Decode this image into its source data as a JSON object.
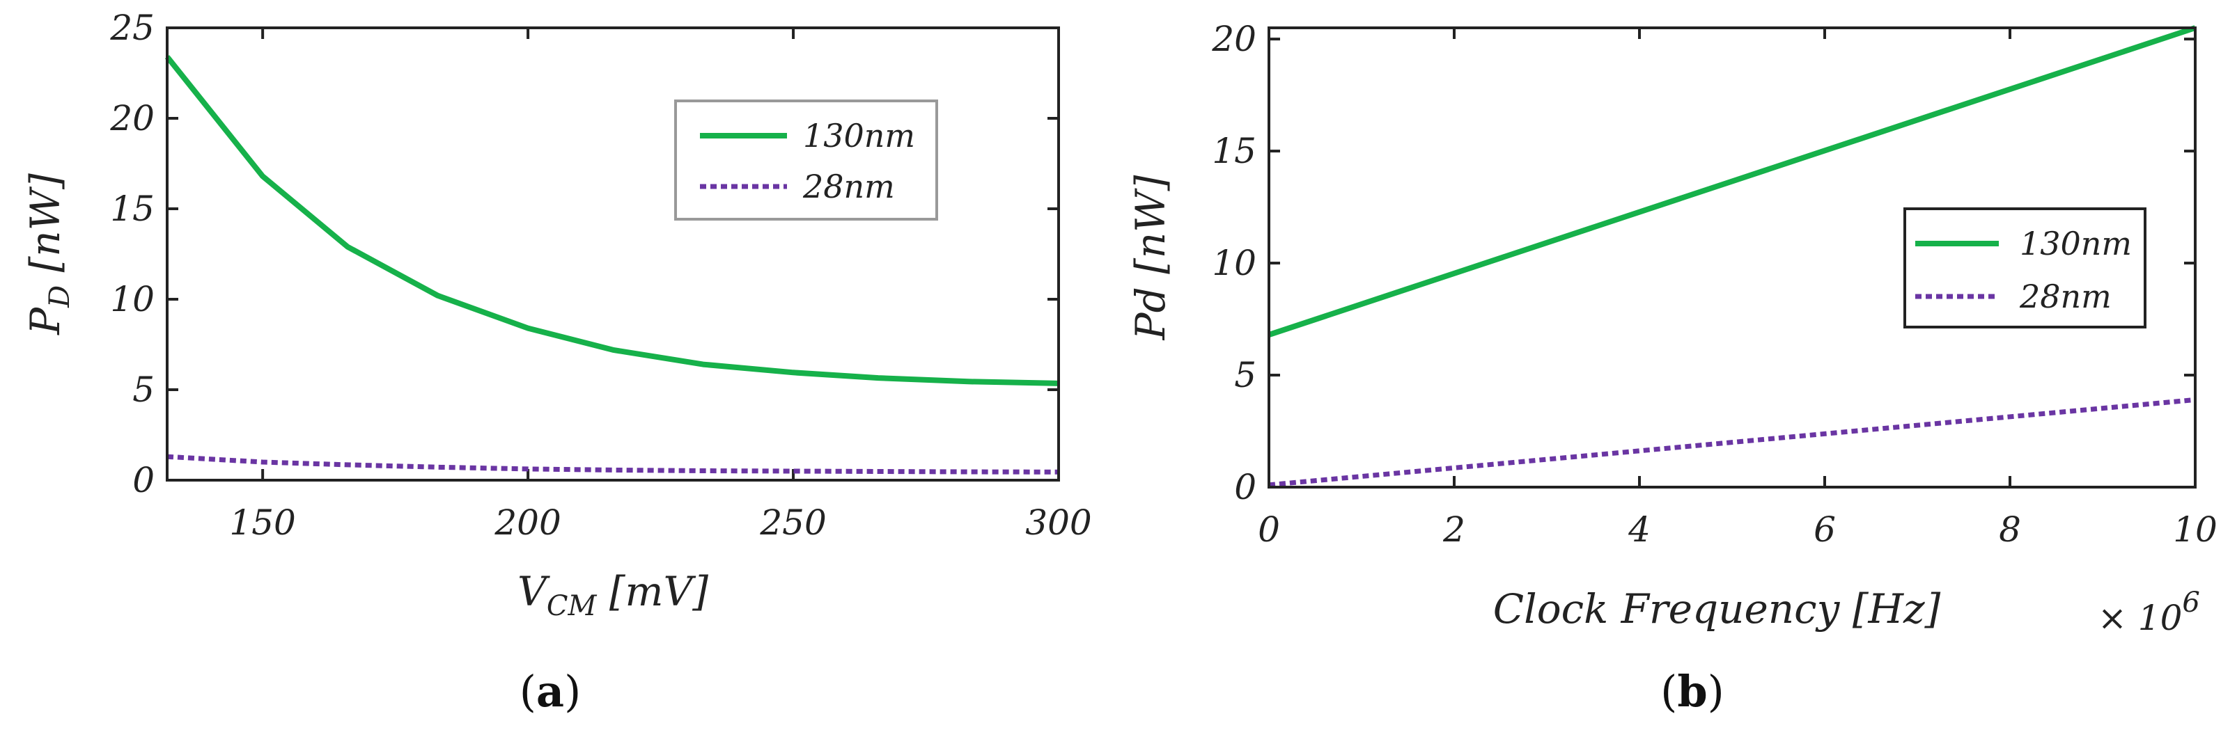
{
  "chart_data": [
    {
      "type": "line",
      "panel": "a",
      "caption": "(a)",
      "xlim": [
        132,
        300
      ],
      "ylim": [
        0,
        25
      ],
      "xticks": [
        150,
        200,
        250,
        300
      ],
      "yticks": [
        0,
        5,
        10,
        15,
        20,
        25
      ],
      "xlabel": {
        "main": "V",
        "sub": "CM",
        "unit": " [mV]"
      },
      "ylabel": {
        "main": "P",
        "sub": "D",
        "unit": " [nW]"
      },
      "legend_position": "top-right",
      "series": [
        {
          "name": "130nm",
          "color": "#16b14a",
          "style": "solid",
          "x": [
            132,
            150,
            166,
            183,
            200,
            216,
            233,
            250,
            266,
            283,
            300
          ],
          "y": [
            23.4,
            16.8,
            12.9,
            10.2,
            8.4,
            7.2,
            6.4,
            5.95,
            5.65,
            5.45,
            5.35
          ]
        },
        {
          "name": "28nm",
          "color": "#6a35a3",
          "style": "dotted",
          "x": [
            132,
            150,
            166,
            183,
            200,
            216,
            233,
            250,
            266,
            283,
            300
          ],
          "y": [
            1.3,
            1.0,
            0.85,
            0.72,
            0.62,
            0.56,
            0.52,
            0.5,
            0.48,
            0.46,
            0.45
          ]
        }
      ]
    },
    {
      "type": "line",
      "panel": "b",
      "caption": "(b)",
      "xlim": [
        0,
        10
      ],
      "ylim": [
        0,
        20.5
      ],
      "xticks": [
        0,
        2,
        4,
        6,
        8,
        10
      ],
      "yticks": [
        0,
        5,
        10,
        15,
        20
      ],
      "xlabel": {
        "main": "Clock Frequency [Hz]"
      },
      "x_multiplier": {
        "base": "× 10",
        "exp": "6"
      },
      "ylabel": {
        "main": "Pd [nW]"
      },
      "legend_position": "center-right",
      "series": [
        {
          "name": "130nm",
          "color": "#16b14a",
          "style": "solid",
          "x": [
            0,
            10
          ],
          "y": [
            6.8,
            20.5
          ]
        },
        {
          "name": "28nm",
          "color": "#6a35a3",
          "style": "dotted",
          "x": [
            0,
            10
          ],
          "y": [
            0.1,
            3.9
          ]
        }
      ]
    }
  ]
}
